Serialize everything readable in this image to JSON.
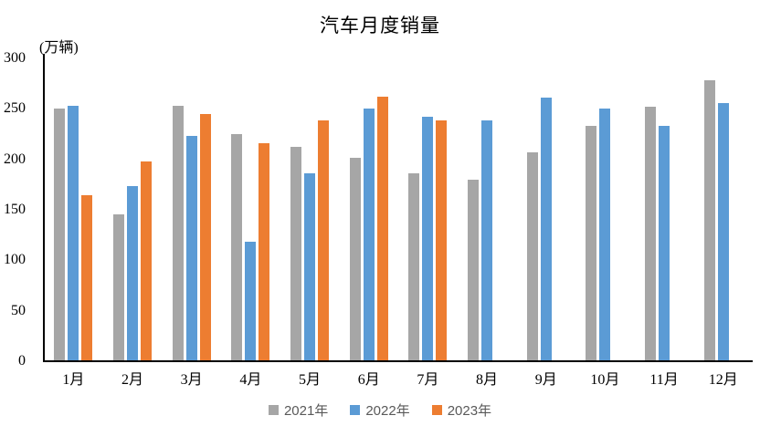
{
  "chart": {
    "title": "汽车月度销量",
    "y_axis_unit": "(万辆)"
  },
  "colors": {
    "series_2021": "#A6A6A6",
    "series_2022": "#5B9BD5",
    "series_2023": "#ED7D31",
    "axis_line": "#000000",
    "tick_text": "#000000",
    "legend_text": "#595959",
    "background": "#FFFFFF"
  },
  "chart_data": {
    "type": "bar",
    "title": "汽车月度销量",
    "xlabel": "",
    "ylabel": "(万辆)",
    "categories": [
      "1月",
      "2月",
      "3月",
      "4月",
      "5月",
      "6月",
      "7月",
      "8月",
      "9月",
      "10月",
      "11月",
      "12月"
    ],
    "series": [
      {
        "name": "2021年",
        "color": "#A6A6A6",
        "values": [
          250.3,
          145.5,
          252.6,
          225.2,
          212.8,
          201.5,
          186.4,
          179.9,
          206.7,
          233.3,
          252.2,
          278.6
        ]
      },
      {
        "name": "2022年",
        "color": "#5B9BD5",
        "values": [
          253.1,
          173.7,
          223.4,
          118.1,
          186.2,
          250.2,
          242.0,
          238.3,
          261.0,
          250.5,
          232.8,
          255.6
        ]
      },
      {
        "name": "2023年",
        "color": "#ED7D31",
        "values": [
          164.9,
          197.6,
          245.1,
          215.9,
          238.2,
          262.2,
          238.8,
          null,
          null,
          null,
          null,
          null
        ]
      }
    ],
    "ylim": [
      0,
      300
    ],
    "yticks": [
      0,
      50,
      100,
      150,
      200,
      250,
      300
    ],
    "grid": false,
    "legend_position": "bottom"
  }
}
